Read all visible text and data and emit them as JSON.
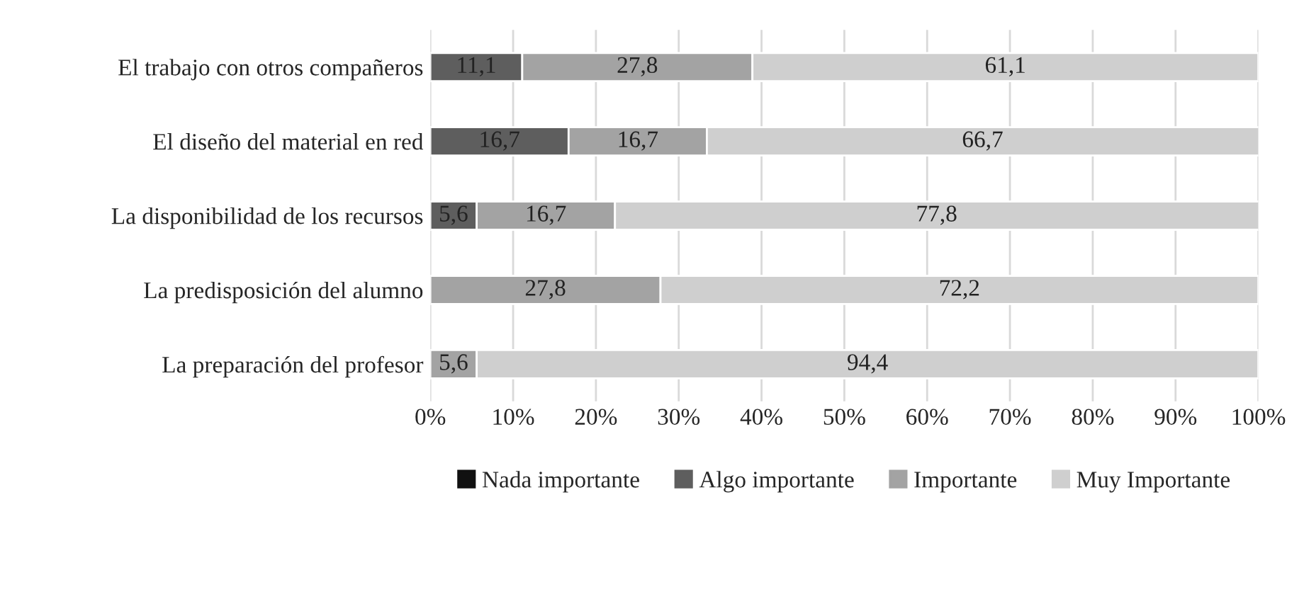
{
  "chart_data": {
    "type": "bar",
    "orientation": "horizontal",
    "stacked": true,
    "categories": [
      "El trabajo con otros compañeros",
      "El diseño del material en red",
      "La disponibilidad de los recursos",
      "La predisposición del alumno",
      "La preparación del profesor"
    ],
    "series": [
      {
        "name": "Nada importante",
        "color": "#111111",
        "values": [
          0,
          0,
          0,
          0,
          0
        ],
        "value_labels": [
          null,
          null,
          null,
          null,
          null
        ]
      },
      {
        "name": "Algo importante",
        "color": "#5e5e5e",
        "values": [
          11.1,
          16.7,
          5.6,
          0,
          0
        ],
        "value_labels": [
          "11,1",
          "16,7",
          "5,6",
          null,
          null
        ]
      },
      {
        "name": "Importante",
        "color": "#a3a3a3",
        "values": [
          27.8,
          16.7,
          16.7,
          27.8,
          5.6
        ],
        "value_labels": [
          "27,8",
          "16,7",
          "16,7",
          "27,8",
          "5,6"
        ]
      },
      {
        "name": "Muy Importante",
        "color": "#cfcfcf",
        "values": [
          61.1,
          66.7,
          77.8,
          72.2,
          94.4
        ],
        "value_labels": [
          "61,1",
          "66,7",
          "77,8",
          "72,2",
          "94,4"
        ]
      }
    ],
    "xlim": [
      0,
      100
    ],
    "xticks": [
      {
        "value": 0,
        "label": "0%"
      },
      {
        "value": 10,
        "label": "10%"
      },
      {
        "value": 20,
        "label": "20%"
      },
      {
        "value": 30,
        "label": "30%"
      },
      {
        "value": 40,
        "label": "40%"
      },
      {
        "value": 50,
        "label": "50%"
      },
      {
        "value": 60,
        "label": "60%"
      },
      {
        "value": 70,
        "label": "70%"
      },
      {
        "value": 80,
        "label": "80%"
      },
      {
        "value": 90,
        "label": "90%"
      },
      {
        "value": 100,
        "label": "100%"
      }
    ],
    "grid": "x",
    "legend": "bottom"
  }
}
